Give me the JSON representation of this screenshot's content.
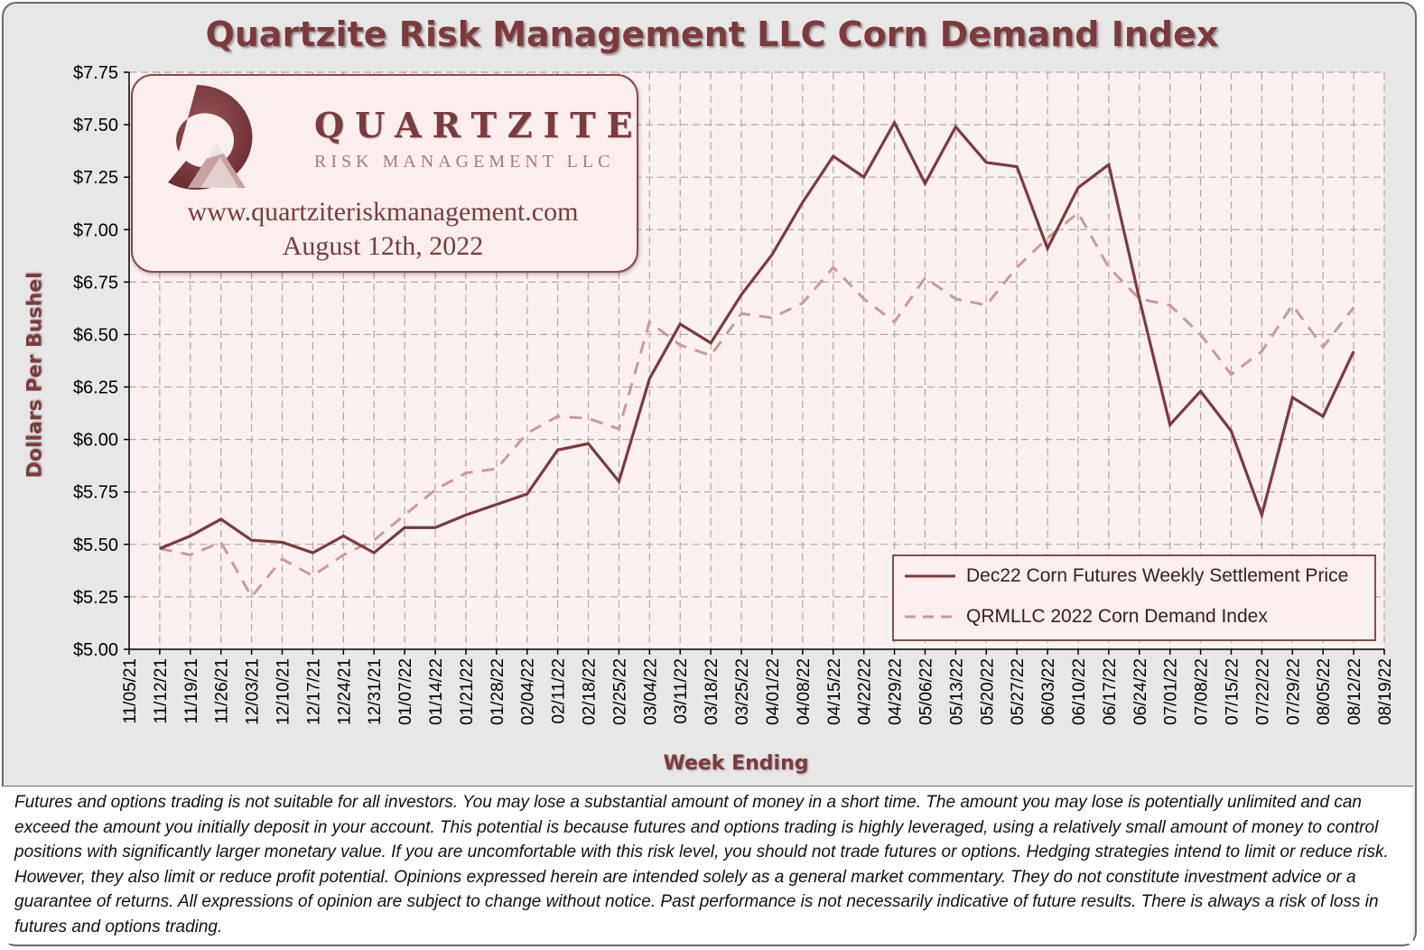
{
  "title": "Quartzite Risk Management LLC Corn Demand Index",
  "colors": {
    "accent": "#7d3a3d",
    "index_line": "#c89a98",
    "plot_bg": "#fbf1f1",
    "grid": "#b7a3a3"
  },
  "logo": {
    "name": "QUARTZITE",
    "subtitle": "RISK MANAGEMENT LLC",
    "website": "www.quartziteriskmanagement.com",
    "date": "August 12th, 2022"
  },
  "chart_data": {
    "type": "line",
    "xlabel": "Week Ending",
    "ylabel": "Dollars Per Bushel",
    "ylim": [
      5.0,
      7.75
    ],
    "y_ticks": [
      "$5.00",
      "$5.25",
      "$5.50",
      "$5.75",
      "$6.00",
      "$6.25",
      "$6.50",
      "$6.75",
      "$7.00",
      "$7.25",
      "$7.50",
      "$7.75"
    ],
    "x": [
      "11/05/21",
      "11/12/21",
      "11/19/21",
      "11/26/21",
      "12/03/21",
      "12/10/21",
      "12/17/21",
      "12/24/21",
      "12/31/21",
      "01/07/22",
      "01/14/22",
      "01/21/22",
      "01/28/22",
      "02/04/22",
      "02/11/22",
      "02/18/22",
      "02/25/22",
      "03/04/22",
      "03/11/22",
      "03/18/22",
      "03/25/22",
      "04/01/22",
      "04/08/22",
      "04/15/22",
      "04/22/22",
      "04/29/22",
      "05/06/22",
      "05/13/22",
      "05/20/22",
      "05/27/22",
      "06/03/22",
      "06/10/22",
      "06/17/22",
      "06/24/22",
      "07/01/22",
      "07/08/22",
      "07/15/22",
      "07/22/22",
      "07/29/22",
      "08/05/22",
      "08/12/22",
      "08/19/22"
    ],
    "grid": true,
    "legend_position": "bottom-right",
    "series": [
      {
        "name": "Dec22 Corn Futures Weekly Settlement Price",
        "style": "solid",
        "color": "#7d3a3d",
        "values": [
          null,
          5.48,
          5.54,
          5.62,
          5.52,
          5.51,
          5.46,
          5.54,
          5.46,
          5.58,
          5.58,
          5.64,
          5.69,
          5.74,
          5.95,
          5.98,
          5.8,
          6.29,
          6.55,
          6.46,
          6.69,
          6.88,
          7.13,
          7.35,
          7.25,
          7.51,
          7.22,
          7.49,
          7.32,
          7.3,
          6.91,
          7.2,
          7.31,
          6.67,
          6.07,
          6.23,
          6.04,
          5.64,
          6.2,
          6.11,
          6.42,
          null
        ]
      },
      {
        "name": "QRMLLC 2022 Corn Demand Index",
        "style": "dashed",
        "color": "#c89a98",
        "values": [
          null,
          5.48,
          5.45,
          5.51,
          5.25,
          5.43,
          5.35,
          5.45,
          5.52,
          5.64,
          5.76,
          5.84,
          5.86,
          6.03,
          6.11,
          6.1,
          6.05,
          6.56,
          6.45,
          6.4,
          6.6,
          6.58,
          6.65,
          6.82,
          6.67,
          6.56,
          6.77,
          6.67,
          6.64,
          6.82,
          6.96,
          7.08,
          6.82,
          6.67,
          6.64,
          6.5,
          6.31,
          6.42,
          6.64,
          6.44,
          6.63,
          null
        ]
      }
    ]
  },
  "disclaimer": "Futures and options trading is not suitable for all investors. You may lose a substantial amount of money in a short time. The amount you may lose is potentially unlimited and can exceed the amount you initially deposit in your account. This potential is because futures and options trading is highly leveraged, using a relatively small amount of money to control positions with significantly larger monetary value. If you are uncomfortable with this risk level, you should not trade futures or options. Hedging strategies intend to limit or reduce risk. However, they also limit or reduce profit potential. Opinions expressed herein are intended solely as a general market commentary. They do not constitute investment advice or a guarantee of returns. All expressions of opinion are subject to change without notice. Past performance is not necessarily indicative of future results. There is always a risk of loss in futures and options trading."
}
